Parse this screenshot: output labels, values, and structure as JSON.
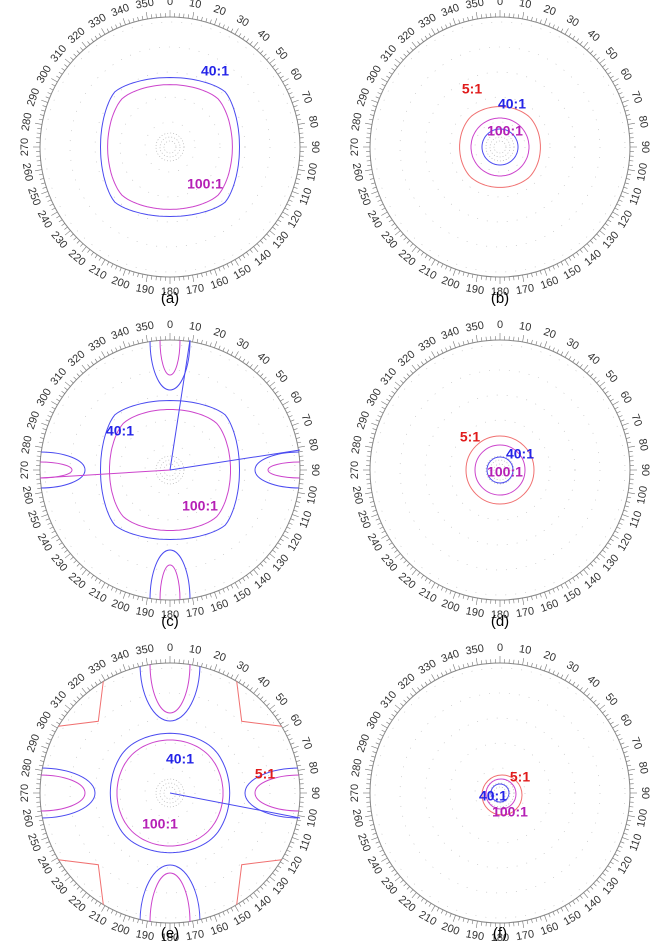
{
  "angles": [
    "0",
    "10",
    "20",
    "30",
    "40",
    "50",
    "60",
    "70",
    "80",
    "90",
    "100",
    "110",
    "120",
    "130",
    "140",
    "150",
    "160",
    "170",
    "180",
    "190",
    "200",
    "210",
    "220",
    "230",
    "240",
    "250",
    "260",
    "270",
    "280",
    "290",
    "300",
    "310",
    "320",
    "330",
    "340",
    "350"
  ],
  "panels": [
    {
      "caption": "(a)",
      "contour_labels": [
        {
          "text": "40:1",
          "color": "#2424e8"
        },
        {
          "text": "100:1",
          "color": "#b51fb5"
        }
      ]
    },
    {
      "caption": "(b)",
      "contour_labels": [
        {
          "text": "5:1",
          "color": "#e01b1b"
        },
        {
          "text": "40:1",
          "color": "#2424e8"
        },
        {
          "text": "100:1",
          "color": "#b51fb5"
        }
      ]
    },
    {
      "caption": "(c)",
      "contour_labels": [
        {
          "text": "40:1",
          "color": "#2424e8"
        },
        {
          "text": "100:1",
          "color": "#b51fb5"
        }
      ]
    },
    {
      "caption": "(d)",
      "contour_labels": [
        {
          "text": "5:1",
          "color": "#e01b1b"
        },
        {
          "text": "40:1",
          "color": "#2424e8"
        },
        {
          "text": "100:1",
          "color": "#b51fb5"
        }
      ]
    },
    {
      "caption": "(e)",
      "contour_labels": [
        {
          "text": "40:1",
          "color": "#2424e8"
        },
        {
          "text": "5:1",
          "color": "#e01b1b"
        },
        {
          "text": "100:1",
          "color": "#b51fb5"
        }
      ]
    },
    {
      "caption": "(f)",
      "contour_labels": [
        {
          "text": "5:1",
          "color": "#e01b1b"
        },
        {
          "text": "40:1",
          "color": "#2424e8"
        },
        {
          "text": "100:1",
          "color": "#b51fb5"
        }
      ]
    }
  ]
}
